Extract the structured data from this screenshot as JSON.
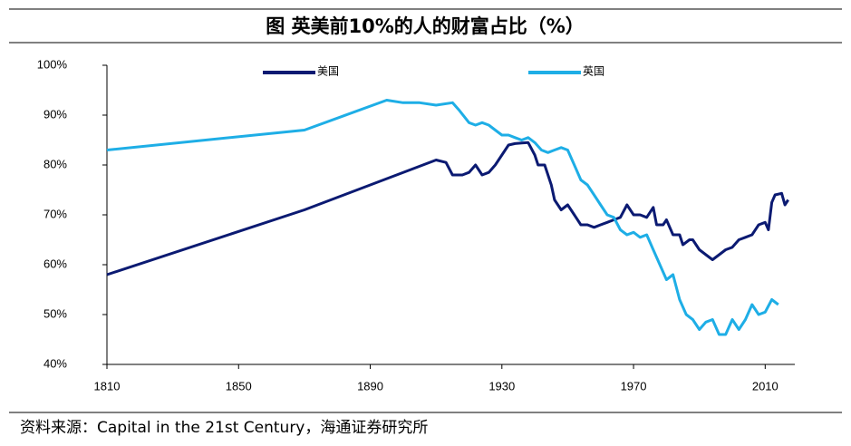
{
  "chart_data": {
    "type": "line",
    "title": "图  英美前10%的人的财富占比（%）",
    "source": "资料来源：Capital in the 21st Century，海通证券研究所",
    "legend": "top",
    "xlim": [
      1810,
      2019
    ],
    "xticks": [
      1810,
      1850,
      1890,
      1930,
      1970,
      2010
    ],
    "ylim": [
      40,
      100
    ],
    "yticks": [
      {
        "value": 40,
        "label": "40%"
      },
      {
        "value": 50,
        "label": "50%"
      },
      {
        "value": 60,
        "label": "60%"
      },
      {
        "value": 70,
        "label": "70%"
      },
      {
        "value": 80,
        "label": "80%"
      },
      {
        "value": 90,
        "label": "90%"
      },
      {
        "value": 100,
        "label": "100%"
      }
    ],
    "grid": false,
    "series": [
      {
        "name": "美国",
        "color": "#0b1a72",
        "x": [
          1810,
          1870,
          1910,
          1913,
          1915,
          1918,
          1920,
          1922,
          1924,
          1926,
          1928,
          1930,
          1932,
          1934,
          1936,
          1938,
          1940,
          1941,
          1943,
          1945,
          1946,
          1948,
          1950,
          1952,
          1954,
          1956,
          1958,
          1960,
          1962,
          1964,
          1966,
          1968,
          1970,
          1972,
          1974,
          1976,
          1977,
          1979,
          1980,
          1982,
          1984,
          1985,
          1987,
          1988,
          1990,
          1992,
          1994,
          1996,
          1998,
          2000,
          2002,
          2004,
          2006,
          2008,
          2010,
          2011,
          2012,
          2013,
          2015,
          2016,
          2017
        ],
        "values": [
          58,
          71,
          81,
          80.5,
          78,
          78,
          78.5,
          80,
          78,
          78.5,
          80,
          82,
          84,
          84.3,
          84.4,
          84.5,
          82,
          80,
          80,
          76,
          73,
          71,
          72,
          70,
          68,
          68,
          67.5,
          68,
          68.5,
          69,
          69.5,
          72,
          70,
          70,
          69.5,
          71.5,
          68,
          68,
          69,
          66,
          66,
          64,
          65,
          65,
          63,
          62,
          61,
          62,
          63,
          63.5,
          65,
          65.5,
          66,
          68,
          68.5,
          67,
          72.5,
          74,
          74.3,
          72,
          73
        ]
      },
      {
        "name": "英国",
        "color": "#1eaee6",
        "x": [
          1810,
          1870,
          1895,
          1900,
          1905,
          1910,
          1915,
          1917,
          1920,
          1922,
          1924,
          1926,
          1928,
          1930,
          1932,
          1934,
          1936,
          1938,
          1940,
          1942,
          1944,
          1946,
          1948,
          1950,
          1952,
          1954,
          1956,
          1958,
          1960,
          1962,
          1964,
          1966,
          1968,
          1970,
          1972,
          1974,
          1976,
          1978,
          1980,
          1982,
          1984,
          1986,
          1988,
          1990,
          1992,
          1994,
          1996,
          1998,
          2000,
          2002,
          2004,
          2006,
          2008,
          2010,
          2012,
          2014
        ],
        "values": [
          83,
          87,
          93,
          92.5,
          92.5,
          92,
          92.5,
          91,
          88.5,
          88,
          88.5,
          88,
          87,
          86,
          86,
          85.5,
          85,
          85.5,
          84.5,
          83,
          82.5,
          83,
          83.5,
          83,
          80,
          77,
          76,
          74,
          72,
          70,
          69.5,
          67,
          66,
          66.5,
          65.5,
          66,
          63,
          60,
          57,
          58,
          53,
          50,
          49,
          47,
          48.5,
          49,
          46,
          46,
          49,
          47,
          49,
          52,
          50,
          50.5,
          53,
          52
        ]
      }
    ]
  }
}
